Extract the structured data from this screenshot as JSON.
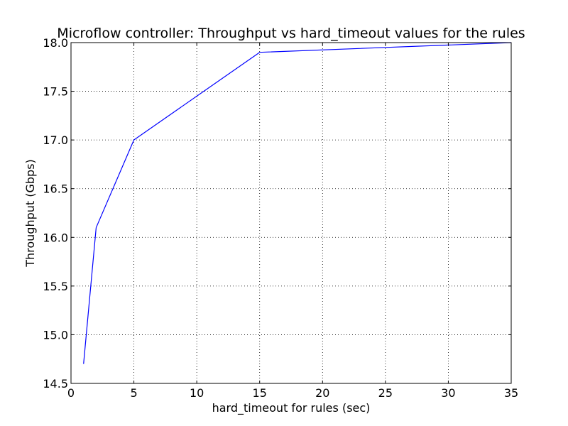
{
  "chart_data": {
    "type": "line",
    "title": "Microflow controller: Throughput vs hard_timeout values for the rules",
    "xlabel": "hard_timeout for rules (sec)",
    "ylabel": "Throughput (Gbps)",
    "xlim": [
      0,
      35
    ],
    "ylim": [
      14.5,
      18.0
    ],
    "x_ticks": [
      0,
      5,
      10,
      15,
      20,
      25,
      30,
      35
    ],
    "x_tick_labels": [
      "0",
      "5",
      "10",
      "15",
      "20",
      "25",
      "30",
      "35"
    ],
    "y_ticks": [
      14.5,
      15.0,
      15.5,
      16.0,
      16.5,
      17.0,
      17.5,
      18.0
    ],
    "y_tick_labels": [
      "14.5",
      "15.0",
      "15.5",
      "16.0",
      "16.5",
      "17.0",
      "17.5",
      "18.0"
    ],
    "grid": true,
    "series": [
      {
        "color": "#0000ff",
        "x": [
          1,
          2,
          5,
          15,
          35
        ],
        "y": [
          14.7,
          16.1,
          17.0,
          17.9,
          18.0
        ]
      }
    ]
  }
}
